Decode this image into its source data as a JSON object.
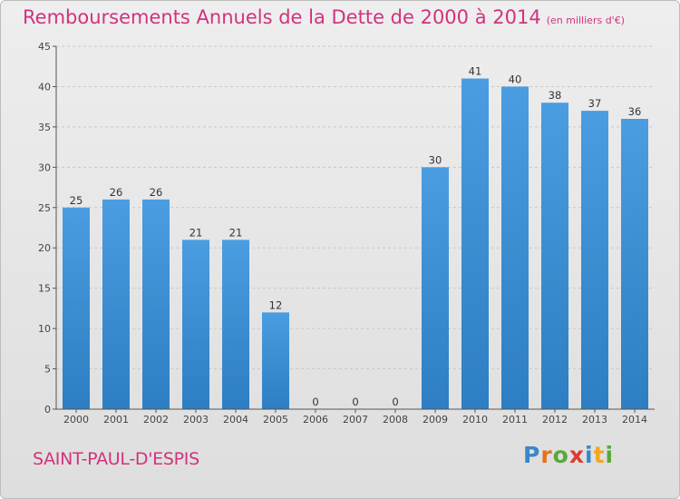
{
  "title": "Remboursements Annuels de la Dette de 2000 à 2014",
  "subtitle": "(en milliers d'€)",
  "commune": "SAINT-PAUL-D'ESPIS",
  "logo": {
    "letters": [
      "P",
      "r",
      "o",
      "x",
      "i",
      "t",
      "i"
    ],
    "colors": [
      "#3a86c8",
      "#e2731f",
      "#5aa83a",
      "#e03a2e",
      "#3a86c8",
      "#f0a81e",
      "#5aa83a"
    ]
  },
  "colors": {
    "bar": "#4a9de0",
    "bar_dark": "#2d7ec2",
    "accent": "#d2327e"
  },
  "chart_data": {
    "type": "bar",
    "title": "Remboursements Annuels de la Dette de 2000 à 2014",
    "categories": [
      "2000",
      "2001",
      "2002",
      "2003",
      "2004",
      "2005",
      "2006",
      "2007",
      "2008",
      "2009",
      "2010",
      "2011",
      "2012",
      "2013",
      "2014"
    ],
    "values": [
      25,
      26,
      26,
      21,
      21,
      12,
      0,
      0,
      0,
      30,
      41,
      40,
      38,
      37,
      36
    ],
    "ylim": [
      0,
      45
    ],
    "yticks": [
      0,
      5,
      10,
      15,
      20,
      25,
      30,
      35,
      40,
      45
    ],
    "xlabel": "",
    "ylabel": ""
  }
}
